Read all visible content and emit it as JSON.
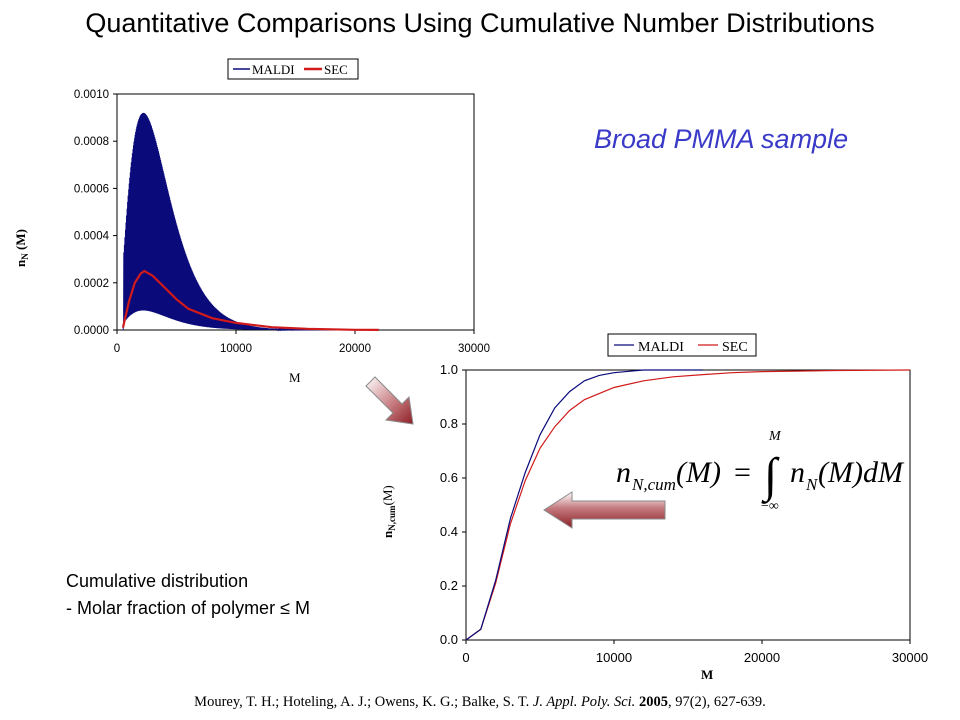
{
  "slide": {
    "title": "Quantitative Comparisons Using Cumulative Number Distributions",
    "subtitle": "Broad PMMA sample",
    "notes": [
      "Cumulative distribution",
      "- Molar fraction of polymer ≤ M"
    ],
    "citation": {
      "authors": "Mourey, T. H.; Hoteling, A. J.; Owens, K. G.; Balke, S. T.",
      "journal": "J. Appl. Poly. Sci.",
      "year": "2005",
      "volume_pages": ", 97(2), 627-639."
    },
    "equation": {
      "lhs_n": "n",
      "lhs_sub": "N,cum",
      "lhs_arg": "(M)",
      "eq": "=",
      "upper": "M",
      "lower": "−∞",
      "rhs_n": "n",
      "rhs_sub": "N",
      "rhs_arg": "(M)dM"
    }
  },
  "colors": {
    "maldi": "#0a0a7a",
    "sec": "#d11a1a",
    "title_accent": "#3a3ac8",
    "arrow": "#a03035"
  },
  "chart_data": [
    {
      "type": "line",
      "xlabel": "M",
      "ylabel": "n_N (M)",
      "xlim": [
        0,
        30000
      ],
      "ylim": [
        0,
        0.001
      ],
      "xticks": [
        "0",
        "10000",
        "20000",
        "30000"
      ],
      "yticks": [
        "0.0000",
        "0.0002",
        "0.0004",
        "0.0006",
        "0.0008",
        "0.0010"
      ],
      "legend": [
        "MALDI",
        "SEC"
      ],
      "legend_position": "top",
      "series": [
        {
          "name": "MALDI",
          "peak_x": 2200,
          "peak_y": 0.00092,
          "x_end": 16000
        },
        {
          "name": "SEC",
          "x": [
            500,
            1000,
            1500,
            2000,
            2300,
            3000,
            4000,
            5000,
            6000,
            8000,
            10000,
            13000,
            16000,
            20000,
            22000
          ],
          "y": [
            1e-05,
            0.00012,
            0.0002,
            0.00024,
            0.00025,
            0.00023,
            0.00018,
            0.00013,
            9e-05,
            5e-05,
            3e-05,
            1.2e-05,
            5e-06,
            1e-06,
            5e-07
          ]
        }
      ]
    },
    {
      "type": "line",
      "xlabel": "M",
      "ylabel": "n_N,cum (M)",
      "xlim": [
        0,
        30000
      ],
      "ylim": [
        0,
        1.0
      ],
      "xticks": [
        "0",
        "10000",
        "20000",
        "30000"
      ],
      "yticks": [
        "0.0",
        "0.2",
        "0.4",
        "0.6",
        "0.8",
        "1.0"
      ],
      "legend": [
        "MALDI",
        "SEC"
      ],
      "legend_position": "top",
      "series": [
        {
          "name": "MALDI",
          "x": [
            0,
            1000,
            2000,
            3000,
            4000,
            5000,
            6000,
            7000,
            8000,
            9000,
            10000,
            12000,
            14000,
            16000
          ],
          "y": [
            0,
            0.04,
            0.22,
            0.45,
            0.62,
            0.76,
            0.86,
            0.92,
            0.96,
            0.98,
            0.99,
            1.0,
            1.0,
            1.0
          ]
        },
        {
          "name": "SEC",
          "x": [
            0,
            1000,
            2000,
            3000,
            4000,
            5000,
            6000,
            7000,
            8000,
            10000,
            12000,
            14000,
            16000,
            18000,
            20000,
            25000,
            30000
          ],
          "y": [
            0,
            0.04,
            0.21,
            0.43,
            0.59,
            0.71,
            0.79,
            0.85,
            0.89,
            0.935,
            0.96,
            0.975,
            0.983,
            0.99,
            0.994,
            0.998,
            1.0
          ]
        }
      ]
    }
  ]
}
